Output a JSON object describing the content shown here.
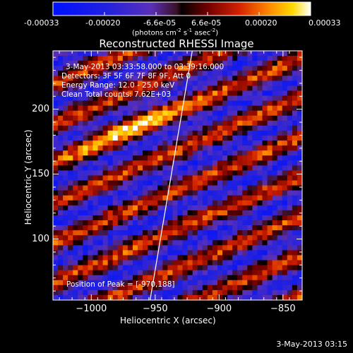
{
  "colorbar": {
    "tick_labels": [
      "-0.00033",
      "-0.00020",
      "-6.6e-05",
      "6.6e-05",
      "0.00020",
      "0.00033"
    ],
    "range": [
      -0.00033,
      0.00033
    ],
    "units_text": "(photons cm",
    "units_sup1": "-2",
    "units_mid": " s",
    "units_sup2": "-1",
    "units_end": " asec",
    "units_sup3": "-2",
    "units_close": ")"
  },
  "chart_data": {
    "type": "heatmap",
    "title": "Reconstructed RHESSI Image",
    "xlabel": "Heliocentric X (arcsec)",
    "ylabel": "Heliocentric Y (arcsec)",
    "xlim": [
      -1030,
      -835
    ],
    "ylim": [
      53,
      245
    ],
    "xticks": [
      -1000,
      -950,
      -900,
      -850
    ],
    "yticks": [
      100,
      150,
      200
    ],
    "xtick_labels": [
      "−1000",
      "−950",
      "−900",
      "−850"
    ],
    "ytick_labels": [
      "100",
      "150",
      "200"
    ],
    "limb_line": [
      [
        -954,
        53
      ],
      [
        -921,
        245
      ]
    ],
    "peak": [
      -970,
      188
    ],
    "annotations": {
      "time_range": "3-May-2013 03:33:58.000 to 03:39:16.000",
      "detectors": "Detectors: 3F 5F 6F 7F 8F 9F, Att 0",
      "energy": "Energy Range: 12.0 - 25.0 keV",
      "clean": "Clean     Total counts: 7.62E+03",
      "peak_text": "Position of Peak = [-970,188]"
    },
    "colors": {
      "background": "#000000",
      "bright": "#ffffff"
    }
  },
  "footer": {
    "timestamp": "3-May-2013 03:15"
  }
}
